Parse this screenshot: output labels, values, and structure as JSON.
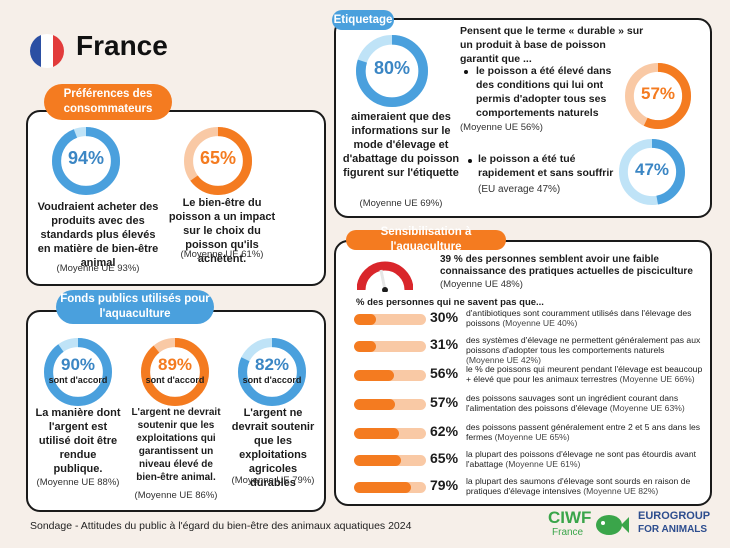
{
  "header": {
    "country": "France"
  },
  "colors": {
    "orange": "#f47b20",
    "blue": "#4aa0dd",
    "light_orange": "#f9c9a5",
    "light_blue": "#bfe3f7",
    "dark_blue": "#3b86c4"
  },
  "preferences": {
    "title": "Préférences des consommateurs",
    "items": [
      {
        "pct": "94%",
        "value": 0.94,
        "text": "Voudraient acheter des produits avec des standards plus élevés en matière de bien-être animal",
        "avg": "(Moyenne UE 93%)"
      },
      {
        "pct": "65%",
        "value": 0.65,
        "text": "Le bien-être du poisson a un impact sur le choix du poisson qu'ils achètent.",
        "avg": "(Moyenne UE 61%)"
      }
    ]
  },
  "funds": {
    "title": "Fonds publics utilisés pour l'aquaculture",
    "agree_label": "sont d'accord",
    "items": [
      {
        "pct": "90%",
        "value": 0.9,
        "text": "La manière dont l'argent est utilisé doit être rendue publique.",
        "avg": "(Moyenne UE 88%)"
      },
      {
        "pct": "89%",
        "value": 0.89,
        "text": "L'argent ne devrait soutenir que les exploitations qui garantissent un niveau élevé de bien-être animal.",
        "avg": "(Moyenne UE 86%)"
      },
      {
        "pct": "82%",
        "value": 0.82,
        "text": "L'argent ne devrait soutenir que les exploitations agricoles durables",
        "avg": "(Moyenne UE 79%)"
      }
    ]
  },
  "labelling": {
    "title": "Etiquetage",
    "main": {
      "pct": "80%",
      "value": 0.8,
      "text": "aimeraient que des informations sur le mode d'élevage et d'abattage du poisson figurent sur l'étiquette",
      "avg": "(Moyenne UE  69%)"
    },
    "intro": "Pensent que le terme « durable » sur un produit à base de poisson garantit que ...",
    "points": [
      {
        "pct": "57%",
        "value": 0.57,
        "text": "le poisson a été élevé dans des conditions qui lui ont permis d'adopter tous ses comportements naturels",
        "avg": "(Moyenne UE 56%)"
      },
      {
        "pct": "47%",
        "value": 0.47,
        "text": "le poisson a été tué rapidement et sans souffrir",
        "avg": "(EU average 47%)"
      }
    ]
  },
  "awareness": {
    "title": "Sensibilisation à l'aquaculture",
    "gauge_text": "39 % des personnes semblent avoir une faible connaissance des pratiques actuelles de pisciculture",
    "gauge_avg": "(Moyenne UE 48%)",
    "gauge_value": 0.39,
    "list_title": "% des personnes qui ne savent pas que...",
    "rows": [
      {
        "pct": "30%",
        "value": 0.3,
        "text": "d'antibiotiques sont couramment utilisés dans l'élevage des poissons",
        "avg": "(Moyenne UE 40%)"
      },
      {
        "pct": "31%",
        "value": 0.31,
        "text": "des systèmes d'élevage ne permettent généralement pas aux poissons d'adopter tous les comportements naturels",
        "avg": "(Moyenne UE 42%)"
      },
      {
        "pct": "56%",
        "value": 0.56,
        "text": "le % de poissons qui meurent pendant l'élevage est beaucoup + élevé que pour les animaux terrestres",
        "avg": "(Moyenne UE 66%)"
      },
      {
        "pct": "57%",
        "value": 0.57,
        "text": "des poissons sauvages sont un ingrédient courant dans l'alimentation des poissons d'élevage",
        "avg": "(Moyenne UE 63%)"
      },
      {
        "pct": "62%",
        "value": 0.62,
        "text": "des poissons passent généralement entre 2 et 5 ans dans les fermes",
        "avg": "(Moyenne UE 65%)"
      },
      {
        "pct": "65%",
        "value": 0.65,
        "text": "la plupart des poissons d'élevage ne sont pas étourdis avant l'abattage",
        "avg": "(Moyenne UE 61%)"
      },
      {
        "pct": "79%",
        "value": 0.79,
        "text": "la plupart des saumons d'élevage sont sourds en raison de pratiques d'élevage intensives",
        "avg": "(Moyenne UE 82%)"
      }
    ]
  },
  "footer": {
    "source": "Sondage - Attitudes du public à l'égard du bien-être des animaux aquatiques 2024",
    "logo1": "CIWF",
    "logo1_sub": "France",
    "logo2_a": "EUROGROUP",
    "logo2_b": "FOR ANIMALS"
  }
}
